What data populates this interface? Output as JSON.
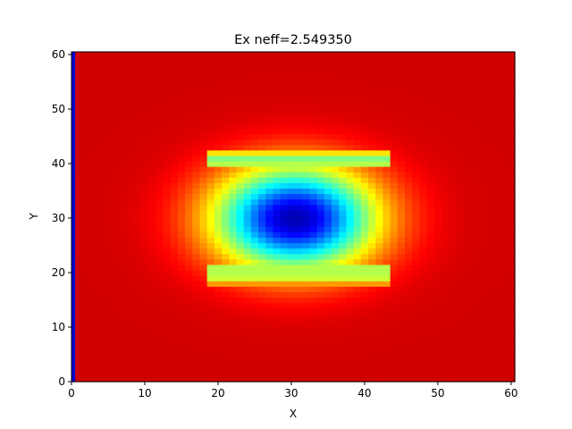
{
  "chart_data": {
    "type": "heatmap",
    "title": "Ex neff=2.549350",
    "xlabel": "X",
    "ylabel": "Y",
    "xlim": [
      0,
      60.5
    ],
    "ylim": [
      0,
      60.5
    ],
    "xticks": [
      0,
      10,
      20,
      30,
      40,
      50,
      60
    ],
    "yticks": [
      0,
      10,
      20,
      30,
      40,
      50,
      60
    ],
    "colormap": "jet",
    "grid": false,
    "field": {
      "center": [
        30.5,
        30
      ],
      "core_radius": [
        7.2,
        6.2
      ],
      "core_value": 0.05,
      "strips": [
        {
          "x0": 20.5,
          "x1": 41,
          "y": 40,
          "value": 0.55
        },
        {
          "x0": 20.5,
          "x1": 41,
          "y": 20.5,
          "value": 0.55
        }
      ],
      "background_value": 0.92,
      "edge_value": 0.08
    }
  }
}
